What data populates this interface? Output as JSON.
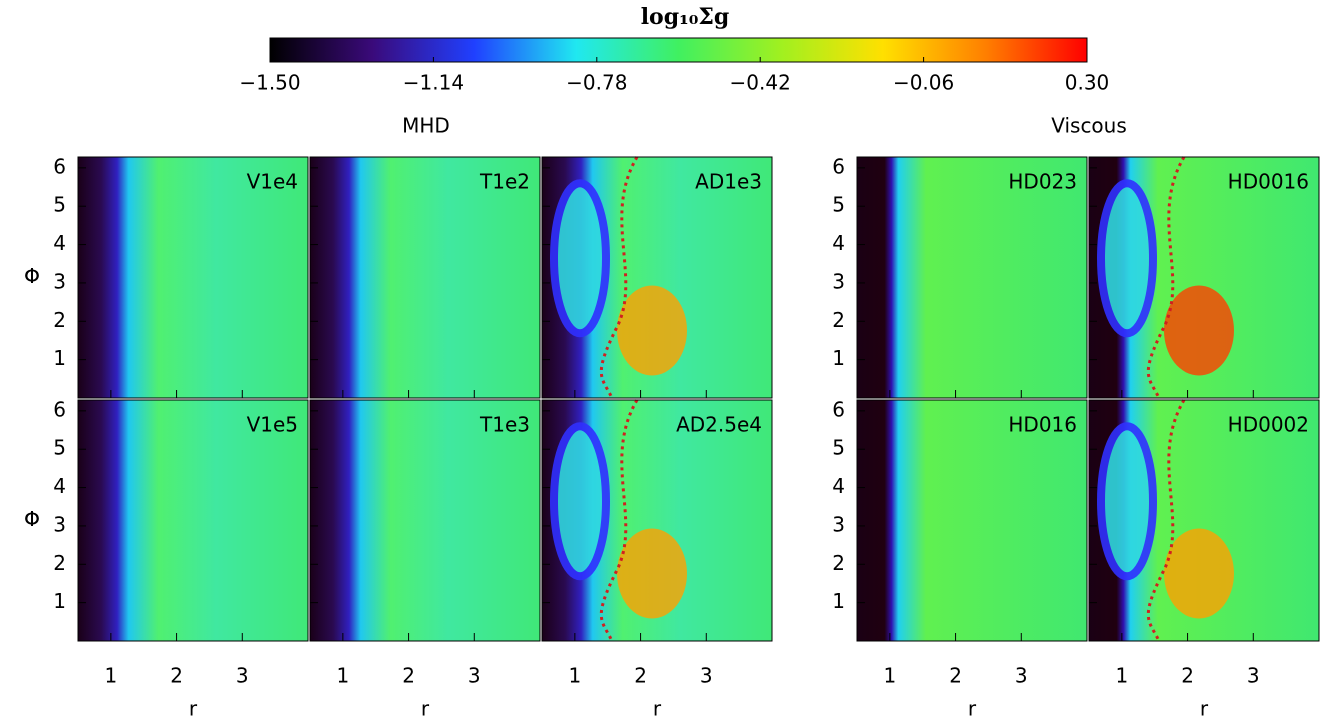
{
  "chart_data": {
    "type": "heatmap",
    "title": "log₁₀Σg",
    "colorbar": {
      "lim": [
        -1.5,
        0.3
      ],
      "ticks": [
        {
          "value": -1.5,
          "label": "−1.50"
        },
        {
          "value": -1.14,
          "label": "−1.14"
        },
        {
          "value": -0.78,
          "label": "−0.78"
        },
        {
          "value": -0.42,
          "label": "−0.42"
        },
        {
          "value": -0.06,
          "label": "−0.06"
        },
        {
          "value": 0.3,
          "label": "0.30"
        }
      ],
      "colors": [
        "#000000",
        "#3a0a7a",
        "#2040ff",
        "#20e8f0",
        "#40f060",
        "#a0f020",
        "#ffe000",
        "#ff8000",
        "#ff0000"
      ]
    },
    "x_label": "r",
    "y_label": "Φ",
    "xlim": [
      0.5,
      4
    ],
    "xticks": [
      1,
      2,
      3
    ],
    "ylim": [
      0,
      6.283
    ],
    "yticks": [
      1,
      2,
      3,
      4,
      5,
      6
    ],
    "groups": [
      {
        "title": "MHD",
        "panels": [
          [
            "V1e4",
            "T1e2",
            "AD1e3"
          ],
          [
            "V1e5",
            "T1e3",
            "AD2.5e4"
          ]
        ]
      },
      {
        "title": "Viscous",
        "panels": [
          [
            "HD023",
            "HD0016"
          ],
          [
            "HD016",
            "HD0002"
          ]
        ]
      }
    ]
  }
}
